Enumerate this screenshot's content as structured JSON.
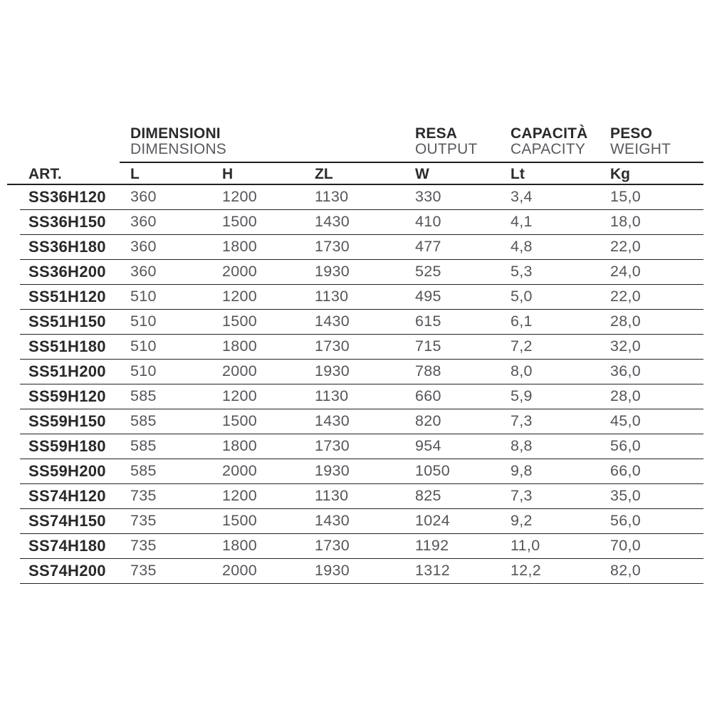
{
  "page": {
    "background": "#ffffff",
    "colors": {
      "dark_text": "#2b2b2e",
      "gray_text": "#595a5e",
      "rule": "#202022"
    }
  },
  "table": {
    "group_headers": [
      {
        "primary": "DIMENSIONI",
        "secondary": "DIMENSIONS"
      },
      {
        "primary": "RESA",
        "secondary": "OUTPUT"
      },
      {
        "primary": "CAPACITÀ",
        "secondary": "CAPACITY"
      },
      {
        "primary": "PESO",
        "secondary": "WEIGHT"
      }
    ],
    "columns": [
      "ART.",
      "L",
      "H",
      "ZL",
      "W",
      "Lt",
      "Kg"
    ],
    "column_keys": [
      "art",
      "l",
      "h",
      "zl",
      "w",
      "lt",
      "kg"
    ],
    "rows": [
      [
        "SS36H120",
        "360",
        "1200",
        "1130",
        "330",
        "3,4",
        "15,0"
      ],
      [
        "SS36H150",
        "360",
        "1500",
        "1430",
        "410",
        "4,1",
        "18,0"
      ],
      [
        "SS36H180",
        "360",
        "1800",
        "1730",
        "477",
        "4,8",
        "22,0"
      ],
      [
        "SS36H200",
        "360",
        "2000",
        "1930",
        "525",
        "5,3",
        "24,0"
      ],
      [
        "SS51H120",
        "510",
        "1200",
        "1130",
        "495",
        "5,0",
        "22,0"
      ],
      [
        "SS51H150",
        "510",
        "1500",
        "1430",
        "615",
        "6,1",
        "28,0"
      ],
      [
        "SS51H180",
        "510",
        "1800",
        "1730",
        "715",
        "7,2",
        "32,0"
      ],
      [
        "SS51H200",
        "510",
        "2000",
        "1930",
        "788",
        "8,0",
        "36,0"
      ],
      [
        "SS59H120",
        "585",
        "1200",
        "1130",
        "660",
        "5,9",
        "28,0"
      ],
      [
        "SS59H150",
        "585",
        "1500",
        "1430",
        "820",
        "7,3",
        "45,0"
      ],
      [
        "SS59H180",
        "585",
        "1800",
        "1730",
        "954",
        "8,8",
        "56,0"
      ],
      [
        "SS59H200",
        "585",
        "2000",
        "1930",
        "1050",
        "9,8",
        "66,0"
      ],
      [
        "SS74H120",
        "735",
        "1200",
        "1130",
        "825",
        "7,3",
        "35,0"
      ],
      [
        "SS74H150",
        "735",
        "1500",
        "1430",
        "1024",
        "9,2",
        "56,0"
      ],
      [
        "SS74H180",
        "735",
        "1800",
        "1730",
        "1192",
        "11,0",
        "70,0"
      ],
      [
        "SS74H200",
        "735",
        "2000",
        "1930",
        "1312",
        "12,2",
        "82,0"
      ]
    ]
  }
}
